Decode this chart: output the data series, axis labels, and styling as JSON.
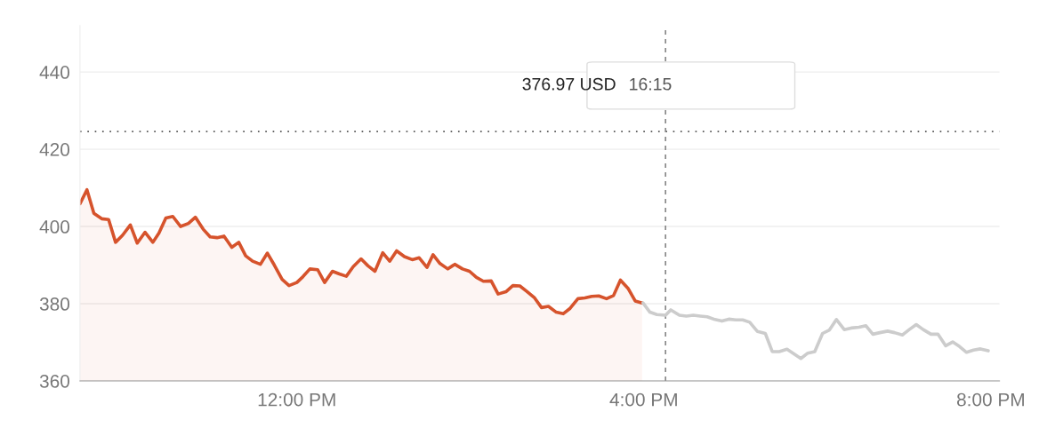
{
  "chart_data": {
    "type": "line",
    "xlim": [
      9.5,
      20.1
    ],
    "xticks": [
      {
        "value": 12,
        "label": "12:00 PM"
      },
      {
        "value": 16,
        "label": "4:00 PM"
      },
      {
        "value": 20,
        "label": "8:00 PM"
      }
    ],
    "ylim": [
      360,
      452
    ],
    "yticks": [
      360,
      380,
      400,
      420,
      440
    ],
    "grid": "y",
    "legend": false,
    "marker": "none",
    "line_style": "solid",
    "series": [
      {
        "type": "area",
        "color": "#d6532c",
        "x": [
          9.5,
          9.58,
          9.66,
          9.75,
          9.83,
          9.91,
          9.99,
          10.08,
          10.16,
          10.25,
          10.34,
          10.41,
          10.49,
          10.57,
          10.66,
          10.75,
          10.83,
          10.92,
          11.0,
          11.08,
          11.16,
          11.25,
          11.33,
          11.41,
          11.49,
          11.58,
          11.66,
          11.74,
          11.83,
          11.91,
          12.0,
          12.07,
          12.15,
          12.24,
          12.32,
          12.41,
          12.49,
          12.57,
          12.65,
          12.74,
          12.82,
          12.9,
          12.99,
          13.07,
          13.15,
          13.24,
          13.33,
          13.41,
          13.5,
          13.57,
          13.65,
          13.74,
          13.82,
          13.91,
          13.99,
          14.07,
          14.15,
          14.24,
          14.32,
          14.41,
          14.49,
          14.57,
          14.65,
          14.74,
          14.82,
          14.9,
          14.99,
          15.07,
          15.15,
          15.24,
          15.32,
          15.4,
          15.48,
          15.57,
          15.65,
          15.73,
          15.82,
          15.9,
          15.98
        ],
        "values": [
          405.9,
          409.5,
          403.4,
          402.0,
          401.8,
          395.9,
          397.7,
          400.4,
          395.7,
          398.5,
          395.9,
          398.3,
          402.2,
          402.6,
          400.0,
          400.8,
          402.4,
          399.3,
          397.3,
          397.1,
          397.5,
          394.6,
          395.9,
          392.4,
          391.0,
          390.2,
          393.1,
          390.0,
          386.3,
          384.7,
          385.5,
          387.0,
          389.0,
          388.8,
          385.5,
          388.4,
          387.7,
          387.1,
          389.6,
          391.6,
          389.8,
          388.4,
          393.2,
          391.0,
          393.7,
          392.2,
          391.4,
          391.9,
          389.4,
          392.7,
          390.4,
          389.0,
          390.2,
          389.0,
          388.4,
          386.8,
          385.8,
          385.9,
          382.5,
          383.1,
          384.7,
          384.6,
          383.2,
          381.5,
          379.0,
          379.3,
          377.8,
          377.4,
          378.8,
          381.3,
          381.5,
          381.9,
          382.0,
          381.3,
          382.1,
          386.1,
          383.9,
          380.7,
          380.2
        ]
      },
      {
        "type": "line",
        "color": "#cccccc",
        "x": [
          15.99,
          16.07,
          16.15,
          16.25,
          16.31,
          16.41,
          16.49,
          16.57,
          16.65,
          16.73,
          16.82,
          16.9,
          16.98,
          17.06,
          17.14,
          17.22,
          17.31,
          17.4,
          17.48,
          17.56,
          17.65,
          17.73,
          17.81,
          17.89,
          17.97,
          18.06,
          18.14,
          18.22,
          18.31,
          18.39,
          18.48,
          18.56,
          18.64,
          18.72,
          18.81,
          18.89,
          18.98,
          19.06,
          19.14,
          19.22,
          19.31,
          19.39,
          19.48,
          19.56,
          19.64,
          19.72,
          19.8,
          19.88,
          19.97
        ],
        "values": [
          380.2,
          377.8,
          377.2,
          377.0,
          378.4,
          377.0,
          376.8,
          377.0,
          376.8,
          376.6,
          375.9,
          375.5,
          376.0,
          375.8,
          375.8,
          375.2,
          372.8,
          372.3,
          367.6,
          367.6,
          368.2,
          367.0,
          365.8,
          367.2,
          367.6,
          372.3,
          373.2,
          375.9,
          373.3,
          373.7,
          373.9,
          374.3,
          372.1,
          372.5,
          372.9,
          372.5,
          371.9,
          373.3,
          374.6,
          373.3,
          372.1,
          372.1,
          369.1,
          370.1,
          368.9,
          367.4,
          368.0,
          368.3,
          367.8
        ]
      }
    ],
    "ref_lines": [
      {
        "axis": "y",
        "value": 424.6,
        "color": "#555555",
        "line_style": "dotted"
      },
      {
        "axis": "x",
        "value": 16.25,
        "color": "#888888",
        "line_style": "dashed"
      }
    ],
    "annotations": [
      "376.97 USD",
      "16:15"
    ]
  }
}
